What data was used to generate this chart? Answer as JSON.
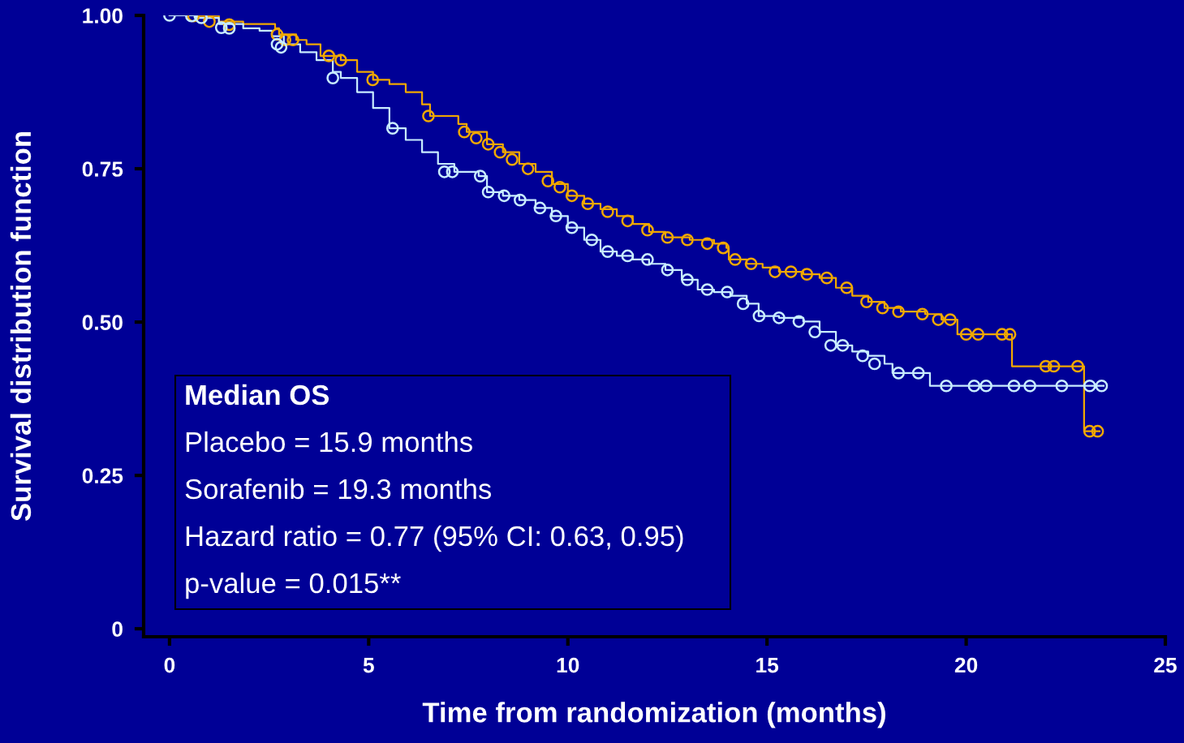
{
  "chart_data": {
    "type": "step",
    "xlabel": "Time from randomization (months)",
    "ylabel": "Survival distribution function",
    "xlim": [
      -0.65,
      25
    ],
    "ylim": [
      -0.013,
      1.0
    ],
    "xticks": [
      0,
      5,
      10,
      15,
      20,
      25
    ],
    "yticks": [
      {
        "value": 0,
        "label": "0"
      },
      {
        "value": 0.25,
        "label": "0.25"
      },
      {
        "value": 0.5,
        "label": "0.50"
      },
      {
        "value": 0.75,
        "label": "0.75"
      },
      {
        "value": 1.0,
        "label": "1.00"
      }
    ],
    "grid": false,
    "legend": false,
    "annotations": [
      "Median OS",
      "Placebo = 15.9 months",
      "Sorafenib = 19.3 months",
      "Hazard ratio = 0.77 (95% CI: 0.63, 0.95)",
      "p-value = 0.015**"
    ],
    "series": [
      {
        "color": "#f0a800",
        "x": [
          0,
          0.63,
          1.24,
          1.85,
          2.65,
          2.75,
          3.18,
          3.44,
          3.79,
          4.3,
          4.71,
          5.11,
          5.52,
          5.93,
          6.34,
          6.54,
          7.25,
          7.46,
          7.97,
          8.37,
          8.78,
          9.19,
          9.6,
          10.0,
          10.41,
          10.82,
          11.23,
          11.63,
          12.04,
          12.45,
          13.06,
          13.67,
          13.98,
          14.04,
          14.49,
          14.89,
          15.3,
          15.91,
          16.32,
          16.73,
          17.14,
          17.54,
          17.95,
          18.36,
          18.97,
          19.38,
          19.78,
          21.15,
          22.96,
          23.35
        ],
        "values": [
          1.0,
          0.999,
          0.99,
          0.986,
          0.979,
          0.969,
          0.96,
          0.953,
          0.934,
          0.927,
          0.908,
          0.895,
          0.888,
          0.875,
          0.855,
          0.836,
          0.823,
          0.81,
          0.79,
          0.777,
          0.758,
          0.745,
          0.725,
          0.706,
          0.693,
          0.684,
          0.673,
          0.66,
          0.647,
          0.638,
          0.634,
          0.628,
          0.621,
          0.602,
          0.595,
          0.589,
          0.582,
          0.578,
          0.572,
          0.556,
          0.543,
          0.533,
          0.523,
          0.517,
          0.513,
          0.504,
          0.48,
          0.428,
          0.322,
          0.322
        ]
      },
      {
        "color": "#c8ecff",
        "x": [
          0,
          0.63,
          1.24,
          1.85,
          2.26,
          2.57,
          2.87,
          3.28,
          3.69,
          4.1,
          4.3,
          4.71,
          5.11,
          5.52,
          5.93,
          6.34,
          6.74,
          7.15,
          7.76,
          7.97,
          8.37,
          8.78,
          9.19,
          9.6,
          10.0,
          10.41,
          10.82,
          11.23,
          11.63,
          12.04,
          12.45,
          12.86,
          13.26,
          13.67,
          14.08,
          14.49,
          14.79,
          15.3,
          15.91,
          16.32,
          16.73,
          17.14,
          17.54,
          17.95,
          18.15,
          19.09,
          23.45
        ],
        "values": [
          1.0,
          0.996,
          0.986,
          0.979,
          0.975,
          0.966,
          0.953,
          0.94,
          0.927,
          0.908,
          0.898,
          0.875,
          0.849,
          0.816,
          0.797,
          0.777,
          0.758,
          0.745,
          0.738,
          0.712,
          0.706,
          0.699,
          0.686,
          0.673,
          0.654,
          0.634,
          0.615,
          0.608,
          0.602,
          0.595,
          0.585,
          0.569,
          0.553,
          0.549,
          0.543,
          0.53,
          0.51,
          0.507,
          0.501,
          0.484,
          0.462,
          0.452,
          0.445,
          0.432,
          0.417,
          0.396,
          0.396
        ]
      },
      {
        "type": "scatter",
        "marker": "circle",
        "color": "#f0a800",
        "x": [
          0.6,
          1.0,
          1.5,
          2.7,
          2.9,
          3.1,
          4.0,
          4.3,
          5.1,
          6.5,
          7.4,
          7.7,
          8.0,
          8.3,
          8.6,
          9.0,
          9.5,
          9.8,
          10.1,
          10.5,
          11.0,
          11.5,
          12.0,
          12.5,
          13.0,
          13.5,
          13.9,
          14.2,
          14.6,
          15.2,
          15.6,
          16.0,
          16.5,
          17.0,
          17.5,
          17.9,
          18.3,
          18.9,
          19.3,
          19.6,
          20.0,
          20.3,
          20.9,
          21.1,
          22.0,
          22.2,
          22.8,
          23.1,
          23.3
        ],
        "values": [
          0.999,
          0.99,
          0.985,
          0.969,
          0.96,
          0.96,
          0.934,
          0.927,
          0.895,
          0.836,
          0.81,
          0.8,
          0.79,
          0.777,
          0.765,
          0.75,
          0.73,
          0.72,
          0.706,
          0.693,
          0.68,
          0.665,
          0.65,
          0.638,
          0.634,
          0.628,
          0.621,
          0.602,
          0.595,
          0.582,
          0.582,
          0.578,
          0.572,
          0.556,
          0.533,
          0.523,
          0.517,
          0.513,
          0.504,
          0.504,
          0.48,
          0.48,
          0.48,
          0.48,
          0.428,
          0.428,
          0.428,
          0.322,
          0.322
        ]
      },
      {
        "type": "scatter",
        "marker": "circle",
        "color": "#c8ecff",
        "x": [
          0.0,
          0.55,
          0.8,
          1.3,
          1.5,
          2.7,
          2.8,
          4.1,
          5.6,
          6.9,
          7.1,
          7.8,
          8.0,
          8.4,
          8.8,
          9.3,
          9.7,
          10.1,
          10.6,
          11.0,
          11.5,
          12.0,
          12.5,
          13.0,
          13.5,
          14.0,
          14.4,
          14.8,
          15.3,
          15.8,
          16.2,
          16.6,
          16.9,
          17.4,
          17.7,
          18.3,
          18.8,
          19.5,
          20.2,
          20.5,
          21.2,
          21.6,
          22.4,
          23.1,
          23.4
        ],
        "values": [
          1.0,
          0.999,
          0.996,
          0.98,
          0.979,
          0.953,
          0.948,
          0.898,
          0.816,
          0.745,
          0.745,
          0.738,
          0.712,
          0.706,
          0.699,
          0.686,
          0.673,
          0.654,
          0.634,
          0.615,
          0.608,
          0.602,
          0.585,
          0.569,
          0.553,
          0.549,
          0.53,
          0.51,
          0.507,
          0.501,
          0.484,
          0.462,
          0.462,
          0.445,
          0.432,
          0.417,
          0.417,
          0.396,
          0.396,
          0.396,
          0.396,
          0.396,
          0.396,
          0.396,
          0.396
        ]
      }
    ]
  }
}
